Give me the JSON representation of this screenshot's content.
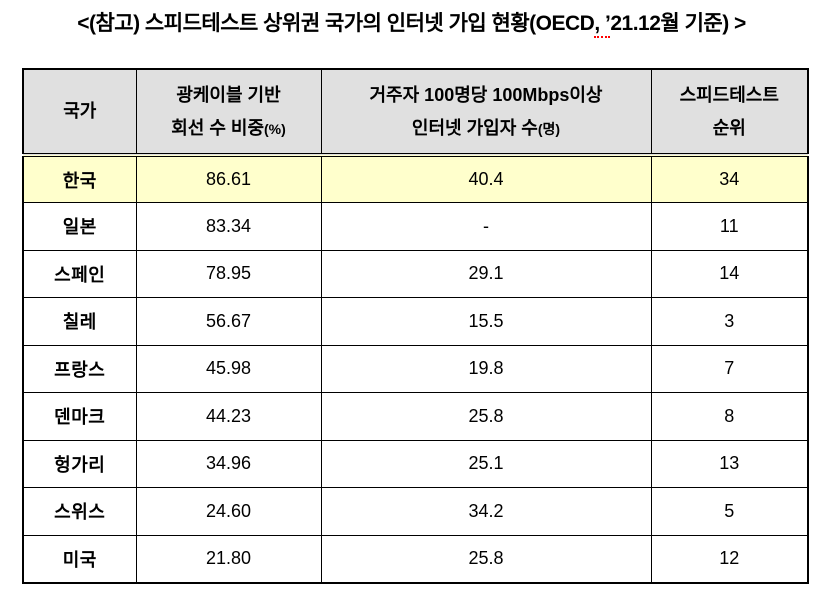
{
  "title": {
    "part1": "<(참고) 스피드테스트 상위권 국가의 인터넷 가입 현황(OECD",
    "part2_spellchecked": ", ’",
    "part3": "21.12월 기준) >"
  },
  "table": {
    "headers": {
      "country": {
        "label": "국가"
      },
      "fiber_share": {
        "line1": "광케이블 기반",
        "line2": "회선 수 비중",
        "unit": "(%)"
      },
      "subscribers": {
        "line1": "거주자 100명당 100Mbps이상",
        "line2": "인터넷 가입자 수",
        "unit": "(명)"
      },
      "rank": {
        "line1": "스피드테스트",
        "line2": "순위"
      }
    },
    "rows": [
      {
        "country": "한국",
        "fiber_share": "86.61",
        "subscribers_per_100": "40.4",
        "speedtest_rank": "34",
        "highlighted": true
      },
      {
        "country": "일본",
        "fiber_share": "83.34",
        "subscribers_per_100": "-",
        "speedtest_rank": "11",
        "highlighted": false
      },
      {
        "country": "스페인",
        "fiber_share": "78.95",
        "subscribers_per_100": "29.1",
        "speedtest_rank": "14",
        "highlighted": false
      },
      {
        "country": "칠레",
        "fiber_share": "56.67",
        "subscribers_per_100": "15.5",
        "speedtest_rank": "3",
        "highlighted": false
      },
      {
        "country": "프랑스",
        "fiber_share": "45.98",
        "subscribers_per_100": "19.8",
        "speedtest_rank": "7",
        "highlighted": false
      },
      {
        "country": "덴마크",
        "fiber_share": "44.23",
        "subscribers_per_100": "25.8",
        "speedtest_rank": "8",
        "highlighted": false
      },
      {
        "country": "헝가리",
        "fiber_share": "34.96",
        "subscribers_per_100": "25.1",
        "speedtest_rank": "13",
        "highlighted": false
      },
      {
        "country": "스위스",
        "fiber_share": "24.60",
        "subscribers_per_100": "34.2",
        "speedtest_rank": "5",
        "highlighted": false
      },
      {
        "country": "미국",
        "fiber_share": "21.80",
        "subscribers_per_100": "25.8",
        "speedtest_rank": "12",
        "highlighted": false
      }
    ]
  },
  "colors": {
    "highlight-row": "#ffffcc",
    "header-bg": "#e0e0e0",
    "border": "#000000",
    "spellcheck-underline": "#ff0000",
    "text": "#000000",
    "page-bg": "#ffffff"
  }
}
